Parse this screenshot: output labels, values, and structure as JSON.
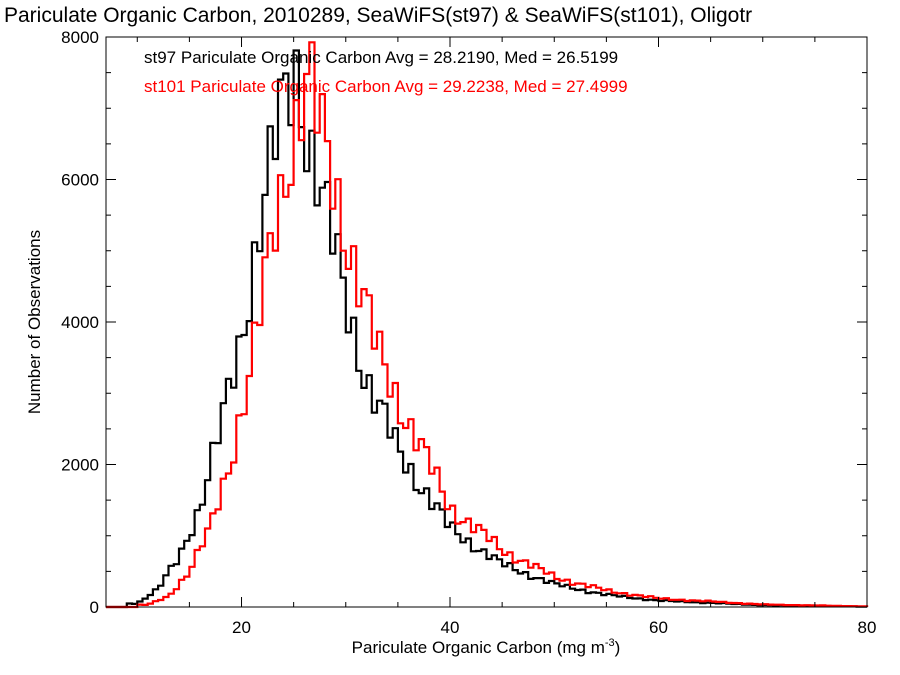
{
  "chart_data": {
    "type": "histogram",
    "title": "Pariculate Organic Carbon, 2010289, SeaWiFS(st97) & SeaWiFS(st101), Oligotr",
    "xlabel_main": "Pariculate Organic Carbon (mg m",
    "xlabel_sup": "-3",
    "xlabel_close": ")",
    "ylabel": "Number of Observations",
    "xlim": [
      7,
      80
    ],
    "ylim": [
      0,
      8000
    ],
    "xticks": [
      20,
      40,
      60,
      80
    ],
    "yticks": [
      0,
      2000,
      4000,
      6000,
      8000
    ],
    "xtick_labels": [
      "20",
      "40",
      "60",
      "80"
    ],
    "ytick_labels": [
      "0",
      "2000",
      "4000",
      "6000",
      "8000"
    ],
    "bin_width": 0.5,
    "series": [
      {
        "name": "st97",
        "color": "#000000",
        "stats_text": "st97 Pariculate Organic Carbon Avg = 28.2190, Med = 26.5199",
        "x": [
          10,
          12,
          14,
          16,
          18,
          20,
          22,
          23,
          24,
          25,
          25.5,
          26,
          28,
          30,
          32,
          35,
          40,
          45,
          50,
          55,
          60,
          70,
          80
        ],
        "y": [
          50,
          250,
          700,
          1400,
          2500,
          3800,
          5600,
          6300,
          7000,
          7400,
          7550,
          6900,
          5600,
          4300,
          3200,
          2200,
          1100,
          600,
          320,
          170,
          90,
          25,
          5
        ]
      },
      {
        "name": "st101",
        "color": "#ff0000",
        "stats_text": "st101 Pariculate Organic Carbon Avg = 29.2238, Med = 27.4999",
        "x": [
          11,
          13,
          15,
          17,
          19,
          21,
          23,
          24,
          25,
          26,
          26.5,
          27,
          29,
          31,
          33,
          36,
          40,
          45,
          50,
          55,
          60,
          70,
          80
        ],
        "y": [
          30,
          150,
          500,
          1100,
          2100,
          3400,
          5200,
          6000,
          6700,
          7200,
          7450,
          7000,
          5900,
          4700,
          3600,
          2600,
          1400,
          800,
          420,
          230,
          120,
          35,
          8
        ]
      }
    ]
  }
}
